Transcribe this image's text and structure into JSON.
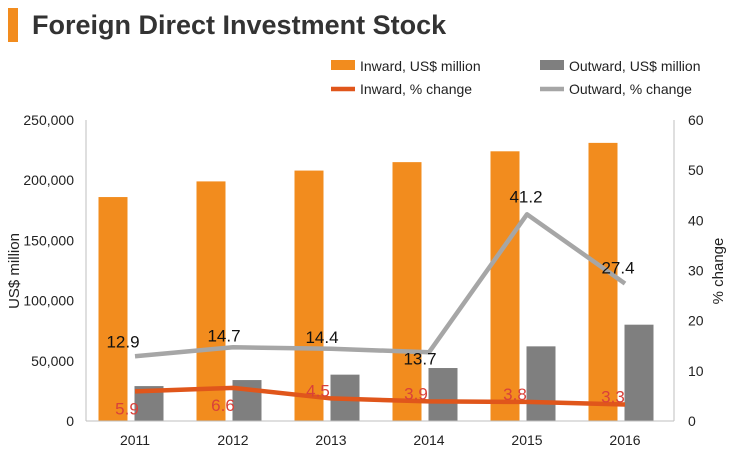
{
  "header": {
    "title": "Foreign Direct Investment Stock"
  },
  "colors": {
    "accent": "#f28c1e",
    "inward_bar": "#f28c1e",
    "outward_bar": "#7f7f7f",
    "inward_line": "#e0561b",
    "outward_line": "#a6a6a6",
    "inward_label": "#d9413a"
  },
  "chart_data": {
    "type": "bar",
    "title": "Foreign Direct Investment Stock",
    "categories": [
      "2011",
      "2012",
      "2013",
      "2014",
      "2015",
      "2016"
    ],
    "series": [
      {
        "name": "Inward, US$ million",
        "type": "bar",
        "axis": "left",
        "values": [
          186000,
          199000,
          208000,
          215000,
          224000,
          231000
        ]
      },
      {
        "name": "Outward, US$ million",
        "type": "bar",
        "axis": "left",
        "values": [
          29000,
          34000,
          38500,
          44000,
          62000,
          80000
        ]
      },
      {
        "name": "Inward, % change",
        "type": "line",
        "axis": "right",
        "values": [
          5.9,
          6.6,
          4.5,
          3.9,
          3.8,
          3.3
        ],
        "labels": [
          "5.9",
          "6.6",
          "4.5",
          "3.9",
          "3.8",
          "3.3"
        ]
      },
      {
        "name": "Outward, % change",
        "type": "line",
        "axis": "right",
        "values": [
          12.9,
          14.7,
          14.4,
          13.7,
          41.2,
          27.4
        ],
        "labels": [
          "12.9",
          "14.7",
          "14.4",
          "13.7",
          "41.2",
          "27.4"
        ]
      }
    ],
    "ylabel": "US$ million",
    "y2label": "% change",
    "ylim": [
      0,
      250000
    ],
    "y2lim": [
      0,
      60
    ],
    "yticks": [
      "0",
      "50,000",
      "100,000",
      "150,000",
      "200,000",
      "250,000"
    ],
    "y2ticks": [
      "0",
      "10",
      "20",
      "30",
      "40",
      "50",
      "60"
    ],
    "grid": false,
    "legend": "top-right"
  }
}
